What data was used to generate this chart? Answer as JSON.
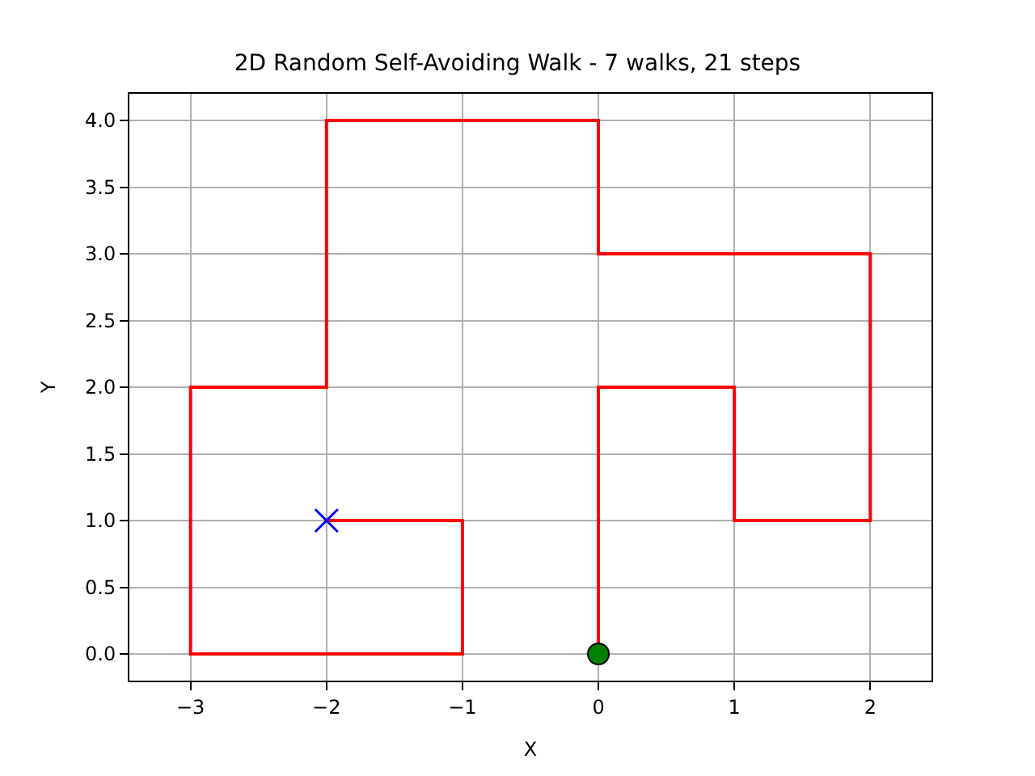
{
  "chart_data": {
    "type": "line",
    "title": "2D Random Self-Avoiding Walk - 7 walks, 21 steps",
    "xlabel": "X",
    "ylabel": "Y",
    "series": [
      {
        "color": "#ff0000",
        "marker": "none",
        "x": [
          0,
          0,
          0,
          1,
          1,
          2,
          2,
          2,
          1,
          0,
          0,
          -1,
          -2,
          -2,
          -2,
          -3,
          -3,
          -3,
          -2,
          -1,
          -1,
          -2
        ],
        "values": [
          0,
          1,
          2,
          2,
          1,
          1,
          2,
          3,
          3,
          3,
          4,
          4,
          4,
          3,
          2,
          2,
          1,
          0,
          0,
          0,
          1,
          1
        ]
      },
      {
        "type": "scatter",
        "color": "#008000",
        "marker": "circle",
        "x": [
          0
        ],
        "values": [
          0
        ]
      },
      {
        "type": "scatter",
        "color": "#0000ff",
        "marker": "cross",
        "x": [
          -2
        ],
        "values": [
          1
        ]
      }
    ],
    "xlim": [
      -3.45,
      2.45
    ],
    "xticks": [
      {
        "value": -3,
        "label": "−3"
      },
      {
        "value": -2,
        "label": "−2"
      },
      {
        "value": -1,
        "label": "−1"
      },
      0,
      1,
      2
    ],
    "ylim": [
      -0.2,
      4.2
    ],
    "yticks": [
      {
        "value": 0,
        "label": "0.0"
      },
      {
        "value": 0.5,
        "label": "0.5"
      },
      {
        "value": 1,
        "label": "1.0"
      },
      {
        "value": 1.5,
        "label": "1.5"
      },
      {
        "value": 2,
        "label": "2.0"
      },
      {
        "value": 2.5,
        "label": "2.5"
      },
      {
        "value": 3,
        "label": "3.0"
      },
      {
        "value": 3.5,
        "label": "3.5"
      },
      {
        "value": 4,
        "label": "4.0"
      }
    ],
    "grid": true
  }
}
